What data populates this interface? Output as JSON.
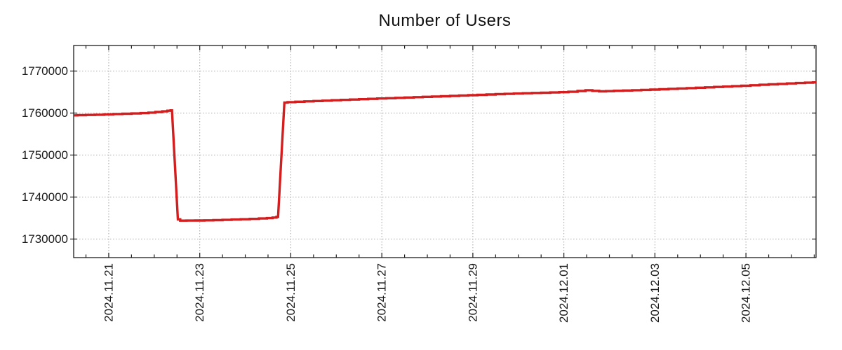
{
  "title": "Number of Users",
  "colors": {
    "line": "#d21e1e",
    "grid": "#a6a6a6",
    "axis": "#1c1c1c",
    "text": "#1a1a1a",
    "background": "#ffffff"
  },
  "chart_data": {
    "type": "line",
    "title": "Number of Users",
    "xlabel": "",
    "ylabel": "",
    "legend": "none",
    "grid": "dotted at major ticks, both axes",
    "x_axis": {
      "unit": "days since 2024-11-20 00:00",
      "range": [
        0.23,
        16.54
      ],
      "minor_tick_step": 0.5,
      "major_ticks": [
        {
          "t": 1,
          "label": "2024.11.21"
        },
        {
          "t": 3,
          "label": "2024.11.23"
        },
        {
          "t": 5,
          "label": "2024.11.25"
        },
        {
          "t": 7,
          "label": "2024.11.27"
        },
        {
          "t": 9,
          "label": "2024.11.29"
        },
        {
          "t": 11,
          "label": "2024.12.01"
        },
        {
          "t": 13,
          "label": "2024.12.03"
        },
        {
          "t": 15,
          "label": "2024.12.05"
        }
      ]
    },
    "y_axis": {
      "range": [
        1725583,
        1776083
      ],
      "major_ticks": [
        {
          "v": 1730000,
          "label": "1730000"
        },
        {
          "v": 1740000,
          "label": "1740000"
        },
        {
          "v": 1750000,
          "label": "1750000"
        },
        {
          "v": 1760000,
          "label": "1760000"
        },
        {
          "v": 1770000,
          "label": "1770000"
        }
      ]
    },
    "series": [
      {
        "name": "number-of-users",
        "color": "#d21e1e",
        "summary": "Starts ~1759500, rises to ~1760600 by Nov 22.4, cliff-drop to ~1734400, flat trough until Nov 24.7 (~1735300), cliff-recovery to ~1762500, then slow steady climb to ~1767300 by Dec 6.5",
        "points": [
          [
            0.23,
            1759450
          ],
          [
            0.4,
            1759500
          ],
          [
            0.6,
            1759550
          ],
          [
            0.8,
            1759600
          ],
          [
            1.0,
            1759680
          ],
          [
            1.2,
            1759760
          ],
          [
            1.4,
            1759830
          ],
          [
            1.6,
            1759900
          ],
          [
            1.8,
            1759980
          ],
          [
            1.95,
            1760100
          ],
          [
            2.1,
            1760250
          ],
          [
            2.25,
            1760400
          ],
          [
            2.33,
            1760550
          ],
          [
            2.39,
            1760640
          ],
          [
            2.52,
            1734700
          ],
          [
            2.62,
            1734380
          ],
          [
            2.8,
            1734400
          ],
          [
            3.0,
            1734420
          ],
          [
            3.2,
            1734450
          ],
          [
            3.4,
            1734500
          ],
          [
            3.6,
            1734560
          ],
          [
            3.8,
            1734650
          ],
          [
            4.0,
            1734720
          ],
          [
            4.2,
            1734800
          ],
          [
            4.4,
            1734900
          ],
          [
            4.55,
            1734980
          ],
          [
            4.65,
            1735120
          ],
          [
            4.72,
            1735280
          ],
          [
            4.86,
            1762480
          ],
          [
            5.0,
            1762600
          ],
          [
            5.2,
            1762700
          ],
          [
            5.4,
            1762780
          ],
          [
            5.6,
            1762870
          ],
          [
            5.8,
            1762950
          ],
          [
            6.0,
            1763050
          ],
          [
            6.2,
            1763130
          ],
          [
            6.4,
            1763220
          ],
          [
            6.6,
            1763300
          ],
          [
            6.8,
            1763380
          ],
          [
            7.0,
            1763460
          ],
          [
            7.2,
            1763540
          ],
          [
            7.4,
            1763620
          ],
          [
            7.6,
            1763700
          ],
          [
            7.8,
            1763780
          ],
          [
            8.0,
            1763860
          ],
          [
            8.2,
            1763930
          ],
          [
            8.4,
            1764000
          ],
          [
            8.6,
            1764080
          ],
          [
            8.8,
            1764160
          ],
          [
            9.0,
            1764250
          ],
          [
            9.2,
            1764330
          ],
          [
            9.4,
            1764420
          ],
          [
            9.6,
            1764500
          ],
          [
            9.8,
            1764570
          ],
          [
            10.0,
            1764650
          ],
          [
            10.2,
            1764720
          ],
          [
            10.4,
            1764780
          ],
          [
            10.6,
            1764840
          ],
          [
            10.8,
            1764900
          ],
          [
            11.0,
            1764960
          ],
          [
            11.2,
            1765060
          ],
          [
            11.4,
            1765250
          ],
          [
            11.55,
            1765430
          ],
          [
            11.7,
            1765280
          ],
          [
            11.85,
            1765160
          ],
          [
            12.0,
            1765220
          ],
          [
            12.2,
            1765300
          ],
          [
            12.4,
            1765370
          ],
          [
            12.6,
            1765440
          ],
          [
            12.8,
            1765510
          ],
          [
            13.0,
            1765590
          ],
          [
            13.2,
            1765670
          ],
          [
            13.4,
            1765760
          ],
          [
            13.6,
            1765850
          ],
          [
            13.8,
            1765940
          ],
          [
            14.0,
            1766030
          ],
          [
            14.2,
            1766120
          ],
          [
            14.4,
            1766210
          ],
          [
            14.6,
            1766300
          ],
          [
            14.8,
            1766400
          ],
          [
            15.0,
            1766500
          ],
          [
            15.2,
            1766620
          ],
          [
            15.4,
            1766730
          ],
          [
            15.6,
            1766830
          ],
          [
            15.8,
            1766940
          ],
          [
            16.0,
            1767050
          ],
          [
            16.2,
            1767150
          ],
          [
            16.4,
            1767240
          ],
          [
            16.54,
            1767300
          ]
        ]
      }
    ]
  }
}
